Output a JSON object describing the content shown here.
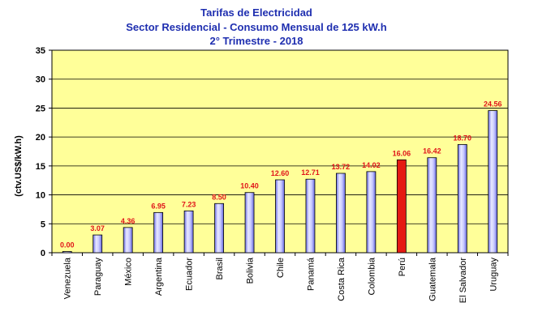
{
  "chart_data": {
    "type": "bar",
    "title": "Tarifas de Electricidad",
    "subtitle": "Sector Residencial - Consumo Mensual de 125 kW.h",
    "subtitle2": "2° Trimestre - 2018",
    "xlabel": "",
    "ylabel": "(ctv.US$/kW.h)",
    "ylim": [
      0,
      35
    ],
    "yticks": [
      "0",
      "5",
      "10",
      "15",
      "20",
      "25",
      "30",
      "35"
    ],
    "grid": true,
    "legend": "none",
    "categories": [
      "Venezuela",
      "Paraguay",
      "México",
      "Argentina",
      "Ecuador",
      "Brasil",
      "Bolivia",
      "Chile",
      "Panamá",
      "Costa Rica",
      "Colombia",
      "Perú",
      "Guatemala",
      "El Salvador",
      "Uruguay"
    ],
    "values": [
      0.0,
      3.07,
      4.36,
      6.95,
      7.23,
      8.5,
      10.4,
      12.6,
      12.71,
      13.72,
      14.02,
      16.06,
      16.42,
      18.7,
      24.56
    ],
    "data_labels": [
      "0.00",
      "3.07",
      "4.36",
      "6.95",
      "7.23",
      "8.50",
      "10.40",
      "12.60",
      "12.71",
      "13.72",
      "14.02",
      "16.06",
      "16.42",
      "18.70",
      "24.56"
    ],
    "highlight_category": "Perú",
    "colors": {
      "bar": "#9a9cf6",
      "bar_highlight": "#e51a12",
      "plot_bg": "#ffff99",
      "title": "#1f2fb0",
      "data_label": "#e0141a",
      "grid": "#000000"
    }
  }
}
